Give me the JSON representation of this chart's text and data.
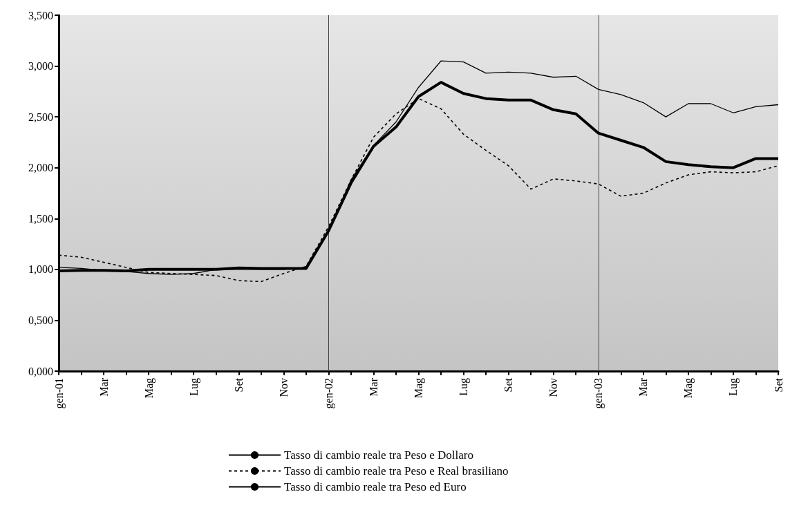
{
  "chart_data": {
    "type": "line",
    "categories": [
      "gen-01",
      null,
      "Mar",
      null,
      "Mag",
      null,
      "Lug",
      null,
      "Set",
      null,
      "Nov",
      null,
      "gen-02",
      null,
      "Mar",
      null,
      "Mag",
      null,
      "Lug",
      null,
      "Set",
      null,
      "Nov",
      null,
      "gen-03",
      null,
      "Mar",
      null,
      "Mag",
      null,
      "Lug",
      null,
      "Set"
    ],
    "series": [
      {
        "name": "Tasso di cambio reale tra Peso e Dollaro",
        "color": "#000000",
        "line_style": "solid",
        "values": [
          0.985,
          0.99,
          0.99,
          0.985,
          1.0,
          1.0,
          1.0,
          1.0,
          1.015,
          1.01,
          1.01,
          1.01,
          1.38,
          1.85,
          2.21,
          2.4,
          2.7,
          2.84,
          2.73,
          2.68,
          2.665,
          2.665,
          2.57,
          2.53,
          2.34,
          2.27,
          2.2,
          2.06,
          2.03,
          2.01,
          2.0,
          2.09,
          2.09
        ]
      },
      {
        "name": "Tasso di cambio reale tra Peso e Real brasiliano",
        "color": "#000000",
        "line_style": "dashed",
        "values": [
          1.14,
          1.12,
          1.07,
          1.02,
          0.97,
          0.96,
          0.95,
          0.94,
          0.89,
          0.88,
          0.96,
          1.03,
          1.42,
          1.88,
          2.3,
          2.53,
          2.68,
          2.58,
          2.33,
          2.17,
          2.02,
          1.79,
          1.89,
          1.87,
          1.84,
          1.72,
          1.75,
          1.85,
          1.93,
          1.96,
          1.95,
          1.96,
          2.02
        ]
      },
      {
        "name": "Tasso di cambio reale tra Peso ed Euro",
        "color": "#000000",
        "line_style": "solid",
        "values": [
          1.02,
          1.01,
          0.99,
          0.98,
          0.96,
          0.95,
          0.96,
          1.0,
          1.0,
          1.0,
          1.0,
          1.02,
          1.38,
          1.88,
          2.22,
          2.45,
          2.79,
          3.05,
          3.04,
          2.93,
          2.94,
          2.93,
          2.89,
          2.9,
          2.77,
          2.72,
          2.64,
          2.5,
          2.63,
          2.63,
          2.54,
          2.6,
          2.62
        ]
      }
    ],
    "ylim": [
      0,
      3.5
    ],
    "yticks": [
      {
        "value": 0,
        "label": "0,000"
      },
      {
        "value": 0.5,
        "label": "0,500"
      },
      {
        "value": 1,
        "label": "1,000"
      },
      {
        "value": 1.5,
        "label": "1,500"
      },
      {
        "value": 2,
        "label": "2,000"
      },
      {
        "value": 2.5,
        "label": "2,500"
      },
      {
        "value": 3,
        "label": "3,000"
      },
      {
        "value": 3.5,
        "label": "3,500"
      }
    ],
    "ref_lines": [
      {
        "axis": "x",
        "value": "gen-02",
        "color": "#404040"
      },
      {
        "axis": "x",
        "value": "gen-03",
        "color": "#404040"
      }
    ],
    "grid": false,
    "legend": "bottom",
    "marker": "none"
  }
}
